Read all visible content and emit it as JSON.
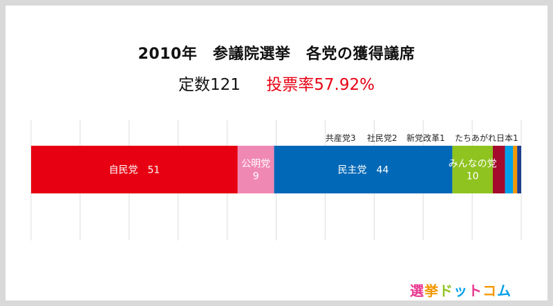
{
  "title": "2010年　参議院選挙　各党の獲得議席",
  "seats_label": "定数121",
  "turnout_label": "投票率57.92%",
  "logo": {
    "chars": [
      "選",
      "挙",
      "ド",
      "ッ",
      "ト",
      "コ",
      "ム"
    ],
    "colors": [
      "#e8368f",
      "#f39800",
      "#8fc31f",
      "#00a0e9",
      "#e8368f",
      "#f39800",
      "#00a0e9"
    ]
  },
  "chart_data": {
    "type": "bar",
    "orientation": "horizontal-stacked",
    "total": 121,
    "grid": true,
    "parties": [
      {
        "name": "自民党",
        "value": 51,
        "color": "#e60012",
        "label": "自民党　51"
      },
      {
        "name": "公明党",
        "value": 9,
        "color": "#f088b4",
        "label": "公明党\n9"
      },
      {
        "name": "民主党",
        "value": 44,
        "color": "#0068b7",
        "label": "民主党　44"
      },
      {
        "name": "みんなの党",
        "value": 10,
        "color": "#8fc31f",
        "label": "みんなの党\n10"
      },
      {
        "name": "共産党",
        "value": 3,
        "color": "#a40b2c",
        "label": "共産党3"
      },
      {
        "name": "社民党",
        "value": 2,
        "color": "#00a0e9",
        "label": "社民党2"
      },
      {
        "name": "新党改革",
        "value": 1,
        "color": "#f39800",
        "label": "新党改革1"
      },
      {
        "name": "たちあがれ日本",
        "value": 1,
        "color": "#1d3f8f",
        "label": "たちあがれ日本1"
      }
    ]
  }
}
